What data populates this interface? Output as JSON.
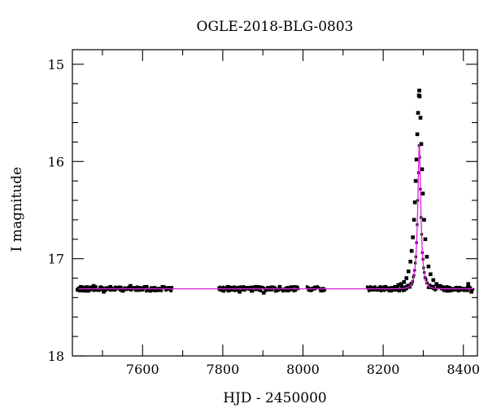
{
  "chart_data": {
    "type": "scatter",
    "title": "OGLE-2018-BLG-0803",
    "xlabel": "HJD - 2450000",
    "ylabel": "I magnitude",
    "xlim": [
      7425,
      8435
    ],
    "ylim": [
      18,
      14.85
    ],
    "y_inverted": true,
    "grid": false,
    "x_ticks_major": [
      7600,
      7800,
      8000,
      8200,
      8400
    ],
    "x_tick_labels": [
      "7600",
      "7800",
      "8000",
      "8200",
      "8400"
    ],
    "y_ticks_major": [
      15,
      16,
      17,
      18
    ],
    "y_tick_labels": [
      "15",
      "16",
      "17",
      "18"
    ],
    "baseline_mag": 17.31,
    "model": {
      "t0": 8290,
      "u0": 0.26,
      "tE": 9,
      "color": "#e020e0"
    },
    "observing_seasons": [
      {
        "start": 7438,
        "end": 7672
      },
      {
        "start": 7790,
        "end": 7990
      },
      {
        "start": 8010,
        "end": 8055
      },
      {
        "start": 8160,
        "end": 8425
      }
    ],
    "series": [
      {
        "points": [
          [
            7438,
            17.32
          ],
          [
            7446,
            17.29
          ],
          [
            7455,
            17.31
          ],
          [
            7463,
            17.33
          ],
          [
            7470,
            17.3
          ],
          [
            7478,
            17.28
          ],
          [
            7487,
            17.32
          ],
          [
            7495,
            17.3
          ],
          [
            7503,
            17.34
          ],
          [
            7512,
            17.31
          ],
          [
            7520,
            17.29
          ],
          [
            7530,
            17.32
          ],
          [
            7540,
            17.3
          ],
          [
            7550,
            17.33
          ],
          [
            7560,
            17.31
          ],
          [
            7570,
            17.28
          ],
          [
            7580,
            17.3
          ],
          [
            7590,
            17.32
          ],
          [
            7600,
            17.31
          ],
          [
            7610,
            17.29
          ],
          [
            7620,
            17.33
          ],
          [
            7630,
            17.3
          ],
          [
            7640,
            17.32
          ],
          [
            7650,
            17.29
          ],
          [
            7660,
            17.31
          ],
          [
            7672,
            17.3
          ],
          [
            7792,
            17.31
          ],
          [
            7802,
            17.33
          ],
          [
            7812,
            17.29
          ],
          [
            7822,
            17.32
          ],
          [
            7832,
            17.3
          ],
          [
            7842,
            17.34
          ],
          [
            7852,
            17.31
          ],
          [
            7862,
            17.3
          ],
          [
            7872,
            17.33
          ],
          [
            7882,
            17.29
          ],
          [
            7892,
            17.32
          ],
          [
            7902,
            17.35
          ],
          [
            7912,
            17.31
          ],
          [
            7922,
            17.3
          ],
          [
            7932,
            17.33
          ],
          [
            7942,
            17.29
          ],
          [
            7952,
            17.32
          ],
          [
            7962,
            17.3
          ],
          [
            7972,
            17.31
          ],
          [
            7985,
            17.3
          ],
          [
            8015,
            17.32
          ],
          [
            8030,
            17.3
          ],
          [
            8050,
            17.31
          ],
          [
            8165,
            17.31
          ],
          [
            8175,
            17.3
          ],
          [
            8185,
            17.32
          ],
          [
            8195,
            17.3
          ],
          [
            8205,
            17.29
          ],
          [
            8215,
            17.31
          ],
          [
            8222,
            17.3
          ],
          [
            8230,
            17.29
          ],
          [
            8238,
            17.27
          ],
          [
            8245,
            17.26
          ],
          [
            8252,
            17.24
          ],
          [
            8258,
            17.2
          ],
          [
            8263,
            17.13
          ],
          [
            8268,
            17.03
          ],
          [
            8271,
            16.92
          ],
          [
            8274,
            16.78
          ],
          [
            8277,
            16.6
          ],
          [
            8279,
            16.42
          ],
          [
            8281,
            16.2
          ],
          [
            8283,
            15.98
          ],
          [
            8285,
            15.72
          ],
          [
            8287,
            15.5
          ],
          [
            8289,
            15.32
          ],
          [
            8290,
            15.27
          ],
          [
            8291,
            15.33
          ],
          [
            8293,
            15.55
          ],
          [
            8295,
            15.82
          ],
          [
            8297,
            16.08
          ],
          [
            8299,
            16.33
          ],
          [
            8302,
            16.6
          ],
          [
            8305,
            16.8
          ],
          [
            8309,
            16.98
          ],
          [
            8313,
            17.08
          ],
          [
            8318,
            17.16
          ],
          [
            8325,
            17.22
          ],
          [
            8333,
            17.26
          ],
          [
            8342,
            17.28
          ],
          [
            8352,
            17.3
          ],
          [
            8362,
            17.33
          ],
          [
            8372,
            17.31
          ],
          [
            8382,
            17.3
          ],
          [
            8392,
            17.32
          ],
          [
            8402,
            17.31
          ],
          [
            8412,
            17.26
          ],
          [
            8420,
            17.34
          ]
        ]
      }
    ]
  }
}
